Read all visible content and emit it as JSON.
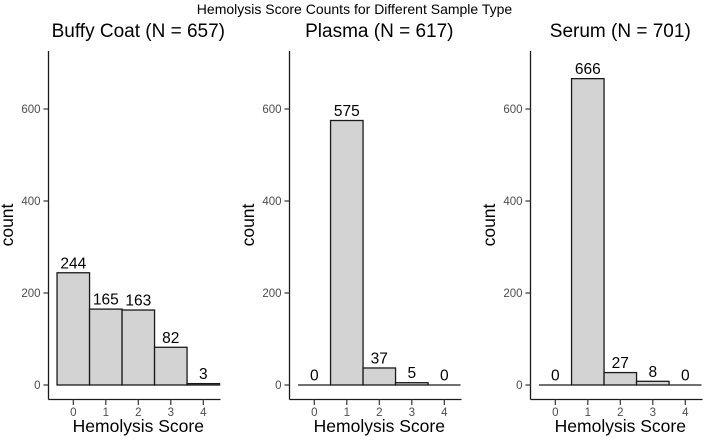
{
  "chart_data": {
    "type": "bar",
    "title": "Hemolysis Score Counts for Different Sample Type",
    "xlabel": "Hemolysis Score",
    "ylabel": "count",
    "categories": [
      "0",
      "1",
      "2",
      "3",
      "4"
    ],
    "yticks": [
      0,
      200,
      400,
      600
    ],
    "ylim": [
      0,
      726
    ],
    "grid": false,
    "legend": "none",
    "bar_value_labels": true,
    "panels": [
      {
        "title": "Buffy Coat (N = 657)",
        "n": 657,
        "values": [
          244,
          165,
          163,
          82,
          3
        ]
      },
      {
        "title": "Plasma (N = 617)",
        "n": 617,
        "values": [
          0,
          575,
          37,
          5,
          0
        ]
      },
      {
        "title": "Serum (N = 701)",
        "n": 701,
        "values": [
          0,
          666,
          27,
          8,
          0
        ]
      }
    ],
    "colors": {
      "bar_fill": "#d3d3d3",
      "bar_stroke": "#1a1a1a",
      "axis_line": "#1a1a1a",
      "tick_mark": "#333333",
      "tick_label": "#4d4d4d",
      "label_text": "#000000",
      "background": "#ffffff"
    }
  }
}
